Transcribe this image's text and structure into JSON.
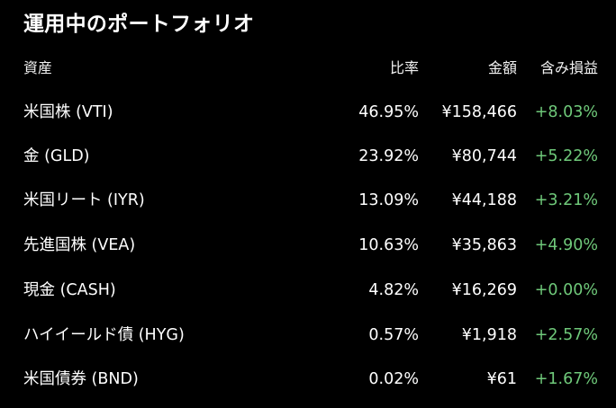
{
  "title": "運用中のポートフォリオ",
  "columns": {
    "asset": "資産",
    "ratio": "比率",
    "value": "金額",
    "pnl": "含み損益"
  },
  "rows": [
    {
      "asset": "米国株 (VTI)",
      "ratio": "46.95%",
      "value": "¥158,466",
      "pnl": "+8.03%"
    },
    {
      "asset": "金 (GLD)",
      "ratio": "23.92%",
      "value": "¥80,744",
      "pnl": "+5.22%"
    },
    {
      "asset": "米国リート (IYR)",
      "ratio": "13.09%",
      "value": "¥44,188",
      "pnl": "+3.21%"
    },
    {
      "asset": "先進国株 (VEA)",
      "ratio": "10.63%",
      "value": "¥35,863",
      "pnl": "+4.90%"
    },
    {
      "asset": "現金 (CASH)",
      "ratio": "4.82%",
      "value": "¥16,269",
      "pnl": "+0.00%"
    },
    {
      "asset": "ハイイールド債 (HYG)",
      "ratio": "0.57%",
      "value": "¥1,918",
      "pnl": "+2.57%"
    },
    {
      "asset": "米国債券 (BND)",
      "ratio": "0.02%",
      "value": "¥61",
      "pnl": "+1.67%"
    }
  ],
  "colors": {
    "background": "#000000",
    "text": "#ffffff",
    "positive": "#6fc97a"
  }
}
